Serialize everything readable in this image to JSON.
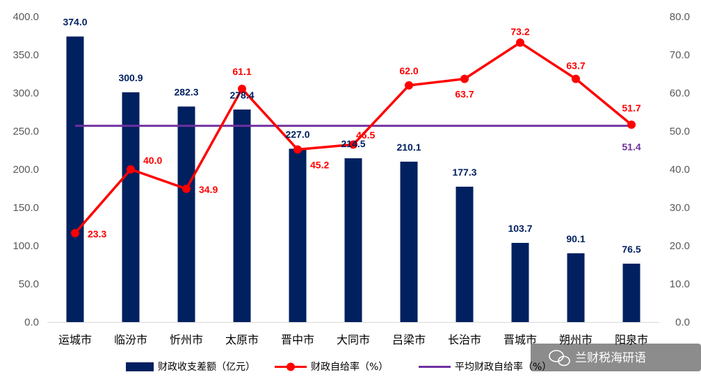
{
  "chart_data": {
    "type": "bar+line",
    "categories": [
      "运城市",
      "临汾市",
      "忻州市",
      "太原市",
      "晋中市",
      "大同市",
      "吕梁市",
      "长治市",
      "晋城市",
      "朔州市",
      "阳泉市"
    ],
    "series": [
      {
        "name": "财政收支差额（亿元）",
        "type": "bar",
        "axis": "left",
        "color": "#002060",
        "values": [
          374.0,
          300.9,
          282.3,
          278.4,
          227.0,
          214.5,
          210.1,
          177.3,
          103.7,
          90.1,
          76.5
        ],
        "labels": [
          "374.0",
          "300.9",
          "282.3",
          "278.4",
          "227.0",
          "214.5",
          "210.1",
          "177.3",
          "103.7",
          "90.1",
          "76.5"
        ]
      },
      {
        "name": "财政自给率（%）",
        "type": "line",
        "axis": "right",
        "color": "#ff0000",
        "marker": "circle",
        "values": [
          23.3,
          40.0,
          34.9,
          61.1,
          45.2,
          46.5,
          62.0,
          63.7,
          73.2,
          63.7,
          51.7
        ],
        "labels": [
          "23.3",
          "40.0",
          "34.9",
          "61.1",
          "45.2",
          "46.5",
          "62.0",
          "63.7",
          "73.2",
          "63.7",
          "51.7"
        ]
      },
      {
        "name": "平均财政自给率（%）",
        "type": "line",
        "axis": "right",
        "color": "#7030a0",
        "value": 51.4,
        "label": "51.4"
      }
    ],
    "y_left": {
      "min": 0,
      "max": 400,
      "step": 50,
      "ticks": [
        "0.0",
        "50.0",
        "100.0",
        "150.0",
        "200.0",
        "250.0",
        "300.0",
        "350.0",
        "400.0"
      ]
    },
    "y_right": {
      "min": 0,
      "max": 80,
      "step": 10,
      "ticks": [
        "0.0",
        "10.0",
        "20.0",
        "30.0",
        "40.0",
        "50.0",
        "60.0",
        "70.0",
        "80.0"
      ]
    },
    "grid": false,
    "legend_position": "bottom"
  },
  "watermark": {
    "text": "兰财税海研语",
    "icon": "wechat-icon"
  }
}
